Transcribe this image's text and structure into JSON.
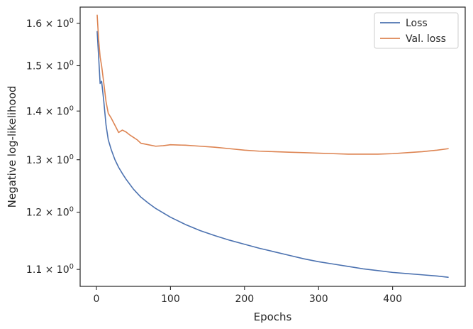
{
  "chart_data": {
    "type": "line",
    "title": "",
    "xlabel": "Epochs",
    "ylabel": "Negative log-likelihood",
    "xlim": [
      -22,
      498
    ],
    "ylim": [
      1.072,
      1.64
    ],
    "yscale": "log",
    "grid": false,
    "legend_position": "top-right",
    "x_ticks": [
      0,
      100,
      200,
      300,
      400
    ],
    "x_tick_labels": [
      "0",
      "100",
      "200",
      "300",
      "400"
    ],
    "y_ticks": [
      1.1,
      1.2,
      1.3,
      1.4,
      1.5,
      1.6
    ],
    "y_tick_labels": [
      {
        "mantissa": "1.1",
        "sep": " × ",
        "base": "10",
        "exp": "0"
      },
      {
        "mantissa": "1.2",
        "sep": " × ",
        "base": "10",
        "exp": "0"
      },
      {
        "mantissa": "1.3",
        "sep": " × ",
        "base": "10",
        "exp": "0"
      },
      {
        "mantissa": "1.4",
        "sep": " × ",
        "base": "10",
        "exp": "0"
      },
      {
        "mantissa": "1.5",
        "sep": " × ",
        "base": "10",
        "exp": "0"
      },
      {
        "mantissa": "1.6",
        "sep": " × ",
        "base": "10",
        "exp": "0"
      }
    ],
    "series": [
      {
        "name": "Loss",
        "color": "#4c72b0",
        "x": [
          1,
          3,
          5,
          7,
          10,
          13,
          16,
          20,
          25,
          30,
          35,
          40,
          50,
          60,
          70,
          80,
          100,
          120,
          140,
          160,
          180,
          200,
          220,
          240,
          260,
          280,
          300,
          320,
          340,
          360,
          380,
          400,
          420,
          440,
          460,
          475
        ],
        "y": [
          1.58,
          1.52,
          1.46,
          1.465,
          1.42,
          1.37,
          1.34,
          1.32,
          1.3,
          1.285,
          1.273,
          1.262,
          1.243,
          1.228,
          1.217,
          1.207,
          1.191,
          1.178,
          1.167,
          1.158,
          1.15,
          1.143,
          1.136,
          1.13,
          1.124,
          1.118,
          1.113,
          1.109,
          1.105,
          1.101,
          1.098,
          1.095,
          1.093,
          1.091,
          1.089,
          1.087
        ]
      },
      {
        "name": "Val. loss",
        "color": "#dd8452",
        "x": [
          1,
          3,
          5,
          7,
          10,
          13,
          16,
          20,
          25,
          30,
          35,
          40,
          45,
          50,
          55,
          60,
          70,
          80,
          90,
          100,
          120,
          140,
          160,
          180,
          200,
          220,
          240,
          260,
          280,
          300,
          320,
          340,
          360,
          380,
          400,
          420,
          440,
          460,
          475
        ],
        "y": [
          1.62,
          1.56,
          1.52,
          1.5,
          1.46,
          1.42,
          1.395,
          1.385,
          1.37,
          1.355,
          1.36,
          1.356,
          1.35,
          1.345,
          1.34,
          1.333,
          1.33,
          1.327,
          1.328,
          1.33,
          1.329,
          1.327,
          1.325,
          1.322,
          1.319,
          1.317,
          1.316,
          1.315,
          1.314,
          1.313,
          1.312,
          1.311,
          1.311,
          1.311,
          1.312,
          1.314,
          1.316,
          1.319,
          1.322
        ]
      }
    ]
  }
}
